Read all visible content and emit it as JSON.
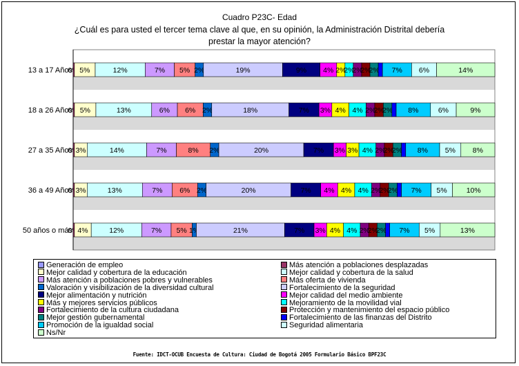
{
  "chart_data": {
    "type": "bar",
    "orientation": "horizontal",
    "stacked_percent": true,
    "title": "Cuadro P23C- Edad",
    "subtitle_line1": "¿Cuál es para usted el tercer tema clave al que, en su opinión, la Administración Distrital debería",
    "subtitle_line2": "prestar la mayor atención?",
    "source": "Fuente: IDCT-OCUB Encuesta de Cultura: Ciudad de Bogotá 2005 Formulario Básico BPF23C",
    "legend_placement": "bottom",
    "grid": true,
    "categories": [
      "13 a 17 Años",
      "18 a 26 Años",
      "27 a 35 Años",
      "36 a 49 Años",
      "50 años o más"
    ],
    "series": [
      {
        "name": "Generación de empleo",
        "color": "#9999FF",
        "values": [
          0,
          0,
          0,
          0,
          0
        ],
        "labels": [
          "0%",
          "0%",
          "0%",
          "0%",
          "0%"
        ]
      },
      {
        "name": "Más atención a poblaciones desplazadas",
        "color": "#993366",
        "values": [
          0.3,
          0.3,
          0.3,
          0.3,
          0.3
        ],
        "labels": [
          "",
          "",
          "",
          "",
          ""
        ]
      },
      {
        "name": "Mejor calidad y cobertura de la educación",
        "color": "#FFFFCC",
        "values": [
          5,
          5,
          3,
          3,
          4
        ],
        "labels": [
          "5%",
          "5%",
          "3%",
          "3%",
          "4%"
        ]
      },
      {
        "name": "Mejor calidad y cobertura de la salud",
        "color": "#CCFFFF",
        "values": [
          12,
          13,
          14,
          13,
          12
        ],
        "labels": [
          "12%",
          "13%",
          "14%",
          "13%",
          "12%"
        ]
      },
      {
        "name": "Más atención a poblaciones pobres y vulnerables",
        "color": "#CC99FF",
        "values": [
          7,
          6,
          7,
          7,
          7
        ],
        "labels": [
          "7%",
          "6%",
          "7%",
          "7%",
          "7%"
        ]
      },
      {
        "name": "Más oferta de vivienda",
        "color": "#FF8080",
        "values": [
          5,
          6,
          8,
          6,
          5
        ],
        "labels": [
          "5%",
          "6%",
          "8%",
          "6%",
          "5%"
        ]
      },
      {
        "name": "Valoración y visibilización de la diversidad cultural",
        "color": "#0066CC",
        "values": [
          2,
          2,
          2,
          2,
          1
        ],
        "labels": [
          "2%",
          "2%",
          "2%",
          "2%",
          "1%"
        ]
      },
      {
        "name": "Fortalecimiento de la seguridad",
        "color": "#CCCCFF",
        "values": [
          19,
          18,
          20,
          20,
          21
        ],
        "labels": [
          "19%",
          "18%",
          "20%",
          "20%",
          "21%"
        ]
      },
      {
        "name": "Mejor alimentación y nutrición",
        "color": "#000080",
        "values": [
          9,
          7,
          7,
          7,
          7
        ],
        "labels": [
          "9%",
          "7%",
          "7%",
          "7%",
          "7%"
        ]
      },
      {
        "name": "Mejor calidad del medio ambiente",
        "color": "#FF00FF",
        "values": [
          4,
          3,
          3,
          4,
          3
        ],
        "labels": [
          "4%",
          "3%",
          "3%",
          "4%",
          "3%"
        ]
      },
      {
        "name": "Más y mejores servicios públicos",
        "color": "#FFFF00",
        "values": [
          2,
          4,
          3,
          4,
          4
        ],
        "labels": [
          "2%",
          "4%",
          "3%",
          "4%",
          "4%"
        ]
      },
      {
        "name": "Mejoramiento de la movilidad vial",
        "color": "#00FFFF",
        "values": [
          2,
          4,
          4,
          4,
          4
        ],
        "labels": [
          "2%",
          "4%",
          "4%",
          "4%",
          "4%"
        ]
      },
      {
        "name": "Fortalecimiento de la cultura ciudadana",
        "color": "#800080",
        "values": [
          2,
          2,
          2,
          2,
          2
        ],
        "labels": [
          "2%",
          "2%",
          "2%",
          "2%",
          "2%"
        ]
      },
      {
        "name": "Protección y mantenimiento del espacio público",
        "color": "#800000",
        "values": [
          2,
          2,
          2,
          2,
          2
        ],
        "labels": [
          "2%",
          "2%",
          "2%",
          "2%",
          "2%"
        ]
      },
      {
        "name": "Mejor gestión gubernamental",
        "color": "#008080",
        "values": [
          2,
          2,
          2,
          2,
          2
        ],
        "labels": [
          "2%",
          "2%",
          "2%",
          "2%",
          "2%"
        ]
      },
      {
        "name": "Fortalecimiento de las finanzas del Distrito",
        "color": "#0000FF",
        "values": [
          1,
          1,
          1,
          1,
          1
        ],
        "labels": [
          "",
          "",
          "",
          "",
          ""
        ]
      },
      {
        "name": "Promoción de la igualdad social",
        "color": "#00CCFF",
        "values": [
          7,
          8,
          8,
          7,
          7
        ],
        "labels": [
          "7%",
          "8%",
          "8%",
          "7%",
          "7%"
        ]
      },
      {
        "name": "Seguridad alimentaria",
        "color": "#CCFFFF",
        "values": [
          6,
          6,
          5,
          5,
          5
        ],
        "labels": [
          "6%",
          "6%",
          "5%",
          "5%",
          "5%"
        ]
      },
      {
        "name": "Ns/Nr",
        "color": "#CCFFCC",
        "values": [
          14,
          9,
          8,
          10,
          13
        ],
        "labels": [
          "14%",
          "9%",
          "8%",
          "10%",
          "13%"
        ]
      }
    ]
  }
}
